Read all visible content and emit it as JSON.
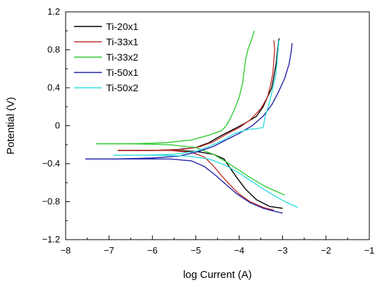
{
  "chart_data": {
    "type": "line",
    "title": "",
    "xlabel": "log Current (A)",
    "ylabel": "Potential (V)",
    "xlim": [
      -8,
      -1
    ],
    "ylim": [
      -1.2,
      1.2
    ],
    "xticks": [
      -8,
      -7,
      -6,
      -5,
      -4,
      -3,
      -2,
      -1
    ],
    "yticks": [
      -1.2,
      -0.8,
      -0.4,
      0,
      0.4,
      0.8,
      1.2
    ],
    "legend_position": "top-left",
    "grid": false,
    "series": [
      {
        "name": "Ti-20x1",
        "color": "#000000",
        "anodic": [
          [
            -6.8,
            -0.26
          ],
          [
            -6.0,
            -0.26
          ],
          [
            -5.4,
            -0.25
          ],
          [
            -5.0,
            -0.23
          ],
          [
            -4.7,
            -0.18
          ],
          [
            -4.4,
            -0.1
          ],
          [
            -4.1,
            -0.03
          ],
          [
            -3.85,
            0.03
          ],
          [
            -3.6,
            0.1
          ],
          [
            -3.45,
            0.2
          ],
          [
            -3.35,
            0.3
          ],
          [
            -3.25,
            0.4
          ],
          [
            -3.2,
            0.52
          ],
          [
            -3.15,
            0.65
          ],
          [
            -3.12,
            0.78
          ],
          [
            -3.08,
            0.92
          ]
        ],
        "cathodic": [
          [
            -6.8,
            -0.26
          ],
          [
            -5.6,
            -0.26
          ],
          [
            -5.0,
            -0.27
          ],
          [
            -4.6,
            -0.3
          ],
          [
            -4.35,
            -0.35
          ],
          [
            -4.2,
            -0.45
          ],
          [
            -4.05,
            -0.55
          ],
          [
            -3.85,
            -0.67
          ],
          [
            -3.6,
            -0.78
          ],
          [
            -3.3,
            -0.85
          ],
          [
            -3.0,
            -0.87
          ]
        ]
      },
      {
        "name": "Ti-33x1",
        "color": "#c0302a",
        "anodic": [
          [
            -6.8,
            -0.26
          ],
          [
            -6.0,
            -0.26
          ],
          [
            -5.3,
            -0.25
          ],
          [
            -4.9,
            -0.22
          ],
          [
            -4.6,
            -0.17
          ],
          [
            -4.3,
            -0.09
          ],
          [
            -4.0,
            -0.02
          ],
          [
            -3.75,
            0.06
          ],
          [
            -3.5,
            0.18
          ],
          [
            -3.35,
            0.3
          ],
          [
            -3.28,
            0.42
          ],
          [
            -3.22,
            0.56
          ],
          [
            -3.2,
            0.7
          ],
          [
            -3.18,
            0.8
          ],
          [
            -3.2,
            0.9
          ]
        ],
        "cathodic": [
          [
            -6.8,
            -0.26
          ],
          [
            -5.6,
            -0.26
          ],
          [
            -5.1,
            -0.28
          ],
          [
            -4.8,
            -0.33
          ],
          [
            -4.6,
            -0.42
          ],
          [
            -4.4,
            -0.53
          ],
          [
            -4.2,
            -0.63
          ],
          [
            -4.0,
            -0.72
          ],
          [
            -3.75,
            -0.8
          ],
          [
            -3.45,
            -0.86
          ],
          [
            -3.2,
            -0.89
          ]
        ]
      },
      {
        "name": "Ti-33x2",
        "color": "#33cc33",
        "anodic": [
          [
            -7.3,
            -0.19
          ],
          [
            -6.5,
            -0.19
          ],
          [
            -5.7,
            -0.18
          ],
          [
            -5.1,
            -0.15
          ],
          [
            -4.7,
            -0.1
          ],
          [
            -4.4,
            -0.05
          ],
          [
            -4.3,
            0.0
          ],
          [
            -4.2,
            0.08
          ],
          [
            -4.1,
            0.18
          ],
          [
            -4.0,
            0.3
          ],
          [
            -3.92,
            0.45
          ],
          [
            -3.88,
            0.6
          ],
          [
            -3.85,
            0.7
          ],
          [
            -3.8,
            0.8
          ],
          [
            -3.72,
            0.9
          ],
          [
            -3.65,
            1.0
          ]
        ],
        "cathodic": [
          [
            -7.3,
            -0.19
          ],
          [
            -6.5,
            -0.19
          ],
          [
            -5.6,
            -0.2
          ],
          [
            -5.0,
            -0.23
          ],
          [
            -4.6,
            -0.3
          ],
          [
            -4.3,
            -0.38
          ],
          [
            -4.0,
            -0.47
          ],
          [
            -3.7,
            -0.56
          ],
          [
            -3.4,
            -0.64
          ],
          [
            -3.1,
            -0.7
          ],
          [
            -2.95,
            -0.73
          ]
        ]
      },
      {
        "name": "Ti-50x1",
        "color": "#2222aa",
        "anodic": [
          [
            -7.55,
            -0.35
          ],
          [
            -6.8,
            -0.35
          ],
          [
            -6.0,
            -0.34
          ],
          [
            -5.4,
            -0.32
          ],
          [
            -5.0,
            -0.28
          ],
          [
            -4.6,
            -0.22
          ],
          [
            -4.3,
            -0.15
          ],
          [
            -4.0,
            -0.08
          ],
          [
            -3.7,
            0.0
          ],
          [
            -3.45,
            0.1
          ],
          [
            -3.25,
            0.22
          ],
          [
            -3.1,
            0.35
          ],
          [
            -2.95,
            0.5
          ],
          [
            -2.85,
            0.65
          ],
          [
            -2.8,
            0.78
          ],
          [
            -2.78,
            0.87
          ]
        ],
        "cathodic": [
          [
            -7.55,
            -0.35
          ],
          [
            -6.5,
            -0.35
          ],
          [
            -5.6,
            -0.35
          ],
          [
            -5.1,
            -0.37
          ],
          [
            -4.8,
            -0.43
          ],
          [
            -4.55,
            -0.52
          ],
          [
            -4.3,
            -0.62
          ],
          [
            -4.05,
            -0.72
          ],
          [
            -3.75,
            -0.81
          ],
          [
            -3.45,
            -0.87
          ],
          [
            -3.2,
            -0.9
          ],
          [
            -3.0,
            -0.92
          ]
        ]
      },
      {
        "name": "Ti-50x2",
        "color": "#33dddd",
        "anodic": [
          [
            -6.9,
            -0.31
          ],
          [
            -6.2,
            -0.31
          ],
          [
            -5.5,
            -0.3
          ],
          [
            -5.0,
            -0.27
          ],
          [
            -4.7,
            -0.22
          ],
          [
            -4.4,
            -0.16
          ],
          [
            -4.1,
            -0.08
          ],
          [
            -3.8,
            -0.04
          ],
          [
            -3.6,
            -0.03
          ],
          [
            -3.45,
            -0.02
          ],
          [
            -3.4,
            0.1
          ],
          [
            -3.3,
            0.25
          ],
          [
            -3.22,
            0.4
          ],
          [
            -3.15,
            0.55
          ],
          [
            -3.12,
            0.72
          ],
          [
            -3.08,
            0.9
          ]
        ],
        "cathodic": [
          [
            -6.9,
            -0.31
          ],
          [
            -6.0,
            -0.31
          ],
          [
            -5.2,
            -0.32
          ],
          [
            -4.7,
            -0.35
          ],
          [
            -4.3,
            -0.42
          ],
          [
            -4.0,
            -0.5
          ],
          [
            -3.7,
            -0.59
          ],
          [
            -3.4,
            -0.68
          ],
          [
            -3.1,
            -0.76
          ],
          [
            -2.85,
            -0.82
          ],
          [
            -2.65,
            -0.86
          ]
        ]
      }
    ]
  }
}
